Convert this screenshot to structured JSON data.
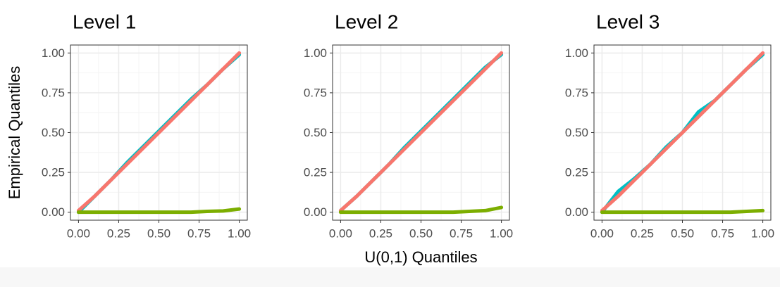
{
  "chart_data": [
    {
      "type": "line",
      "title": "Level 1",
      "ylabel": "Empirical Quantiles",
      "x": [
        0,
        0.1,
        0.2,
        0.3,
        0.4,
        0.5,
        0.6,
        0.7,
        0.8,
        0.9,
        1.0
      ],
      "series": [
        {
          "color": "#00BFC4",
          "values": [
            0,
            0.1,
            0.2,
            0.31,
            0.41,
            0.51,
            0.61,
            0.71,
            0.8,
            0.9,
            0.99
          ]
        },
        {
          "color": "#F8766D",
          "values": [
            0.01,
            0.1,
            0.2,
            0.3,
            0.4,
            0.5,
            0.6,
            0.7,
            0.8,
            0.9,
            1.0
          ]
        },
        {
          "color": "#7CAE00",
          "values": [
            0,
            0,
            0,
            0,
            0,
            0,
            0,
            0,
            0.005,
            0.008,
            0.02
          ]
        }
      ],
      "xlim": [
        -0.05,
        1.05
      ],
      "ylim": [
        -0.05,
        1.05
      ],
      "xticks": [
        {
          "value": 0,
          "label": "0.00"
        },
        {
          "value": 0.25,
          "label": "0.25"
        },
        {
          "value": 0.5,
          "label": "0.50"
        },
        {
          "value": 0.75,
          "label": "0.75"
        },
        {
          "value": 1,
          "label": "1.00"
        }
      ],
      "yticks": [
        {
          "value": 0,
          "label": "0.00"
        },
        {
          "value": 0.25,
          "label": "0.25"
        },
        {
          "value": 0.5,
          "label": "0.50"
        },
        {
          "value": 0.75,
          "label": "0.75"
        },
        {
          "value": 1,
          "label": "1.00"
        }
      ],
      "grid": true
    },
    {
      "type": "line",
      "title": "Level 2",
      "xlabel": "U(0,1) Quantiles",
      "x": [
        0,
        0.1,
        0.2,
        0.3,
        0.4,
        0.5,
        0.6,
        0.7,
        0.8,
        0.9,
        1.0
      ],
      "series": [
        {
          "color": "#00BFC4",
          "values": [
            0.01,
            0.1,
            0.2,
            0.3,
            0.41,
            0.51,
            0.61,
            0.71,
            0.81,
            0.91,
            0.99
          ]
        },
        {
          "color": "#F8766D",
          "values": [
            0.01,
            0.1,
            0.2,
            0.3,
            0.4,
            0.5,
            0.6,
            0.7,
            0.8,
            0.9,
            1.0
          ]
        },
        {
          "color": "#7CAE00",
          "values": [
            0,
            0,
            0,
            0,
            0,
            0,
            0,
            0,
            0.005,
            0.01,
            0.03
          ]
        }
      ],
      "xlim": [
        -0.05,
        1.05
      ],
      "ylim": [
        -0.05,
        1.05
      ],
      "xticks": [
        {
          "value": 0,
          "label": "0.00"
        },
        {
          "value": 0.25,
          "label": "0.25"
        },
        {
          "value": 0.5,
          "label": "0.50"
        },
        {
          "value": 0.75,
          "label": "0.75"
        },
        {
          "value": 1,
          "label": "1.00"
        }
      ],
      "yticks": [
        {
          "value": 0,
          "label": "0.00"
        },
        {
          "value": 0.25,
          "label": "0.25"
        },
        {
          "value": 0.5,
          "label": "0.50"
        },
        {
          "value": 0.75,
          "label": "0.75"
        },
        {
          "value": 1,
          "label": "1.00"
        }
      ],
      "grid": true
    },
    {
      "type": "line",
      "title": "Level 3",
      "x": [
        0,
        0.1,
        0.2,
        0.3,
        0.4,
        0.5,
        0.6,
        0.7,
        0.8,
        0.9,
        1.0
      ],
      "series": [
        {
          "color": "#00BFC4",
          "values": [
            0,
            0.13,
            0.21,
            0.3,
            0.41,
            0.5,
            0.63,
            0.7,
            0.8,
            0.9,
            0.99
          ]
        },
        {
          "color": "#F8766D",
          "values": [
            0.01,
            0.1,
            0.2,
            0.3,
            0.4,
            0.5,
            0.6,
            0.7,
            0.8,
            0.9,
            1.0
          ]
        },
        {
          "color": "#7CAE00",
          "values": [
            0,
            0,
            0,
            0,
            0,
            0,
            0,
            0,
            0,
            0.005,
            0.01
          ]
        }
      ],
      "xlim": [
        -0.05,
        1.05
      ],
      "ylim": [
        -0.05,
        1.05
      ],
      "xticks": [
        {
          "value": 0,
          "label": "0.00"
        },
        {
          "value": 0.25,
          "label": "0.25"
        },
        {
          "value": 0.5,
          "label": "0.50"
        },
        {
          "value": 0.75,
          "label": "0.75"
        },
        {
          "value": 1,
          "label": "1.00"
        }
      ],
      "yticks": [
        {
          "value": 0,
          "label": "0.00"
        },
        {
          "value": 0.25,
          "label": "0.25"
        },
        {
          "value": 0.5,
          "label": "0.50"
        },
        {
          "value": 0.75,
          "label": "0.75"
        },
        {
          "value": 1,
          "label": "1.00"
        }
      ],
      "grid": true
    }
  ]
}
